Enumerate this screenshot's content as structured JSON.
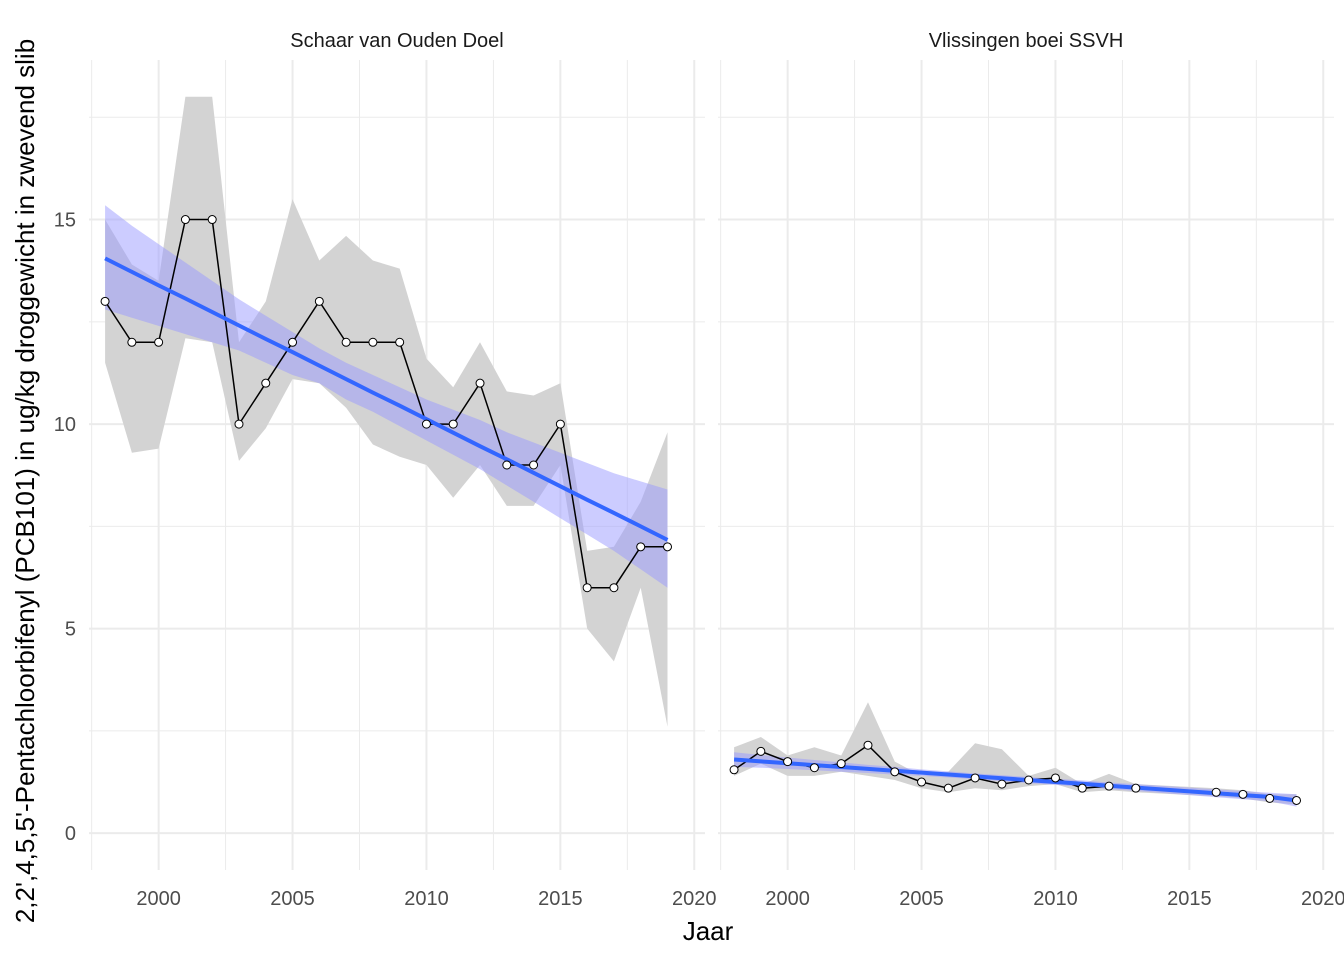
{
  "chart_data": {
    "type": "line",
    "xlabel": "Jaar",
    "ylabel": "2,2',4,5,5'-Pentachloorbifenyl (PCB101) in ug/kg droggewicht in zwevend slib",
    "xlim": [
      1997.4,
      2020.4
    ],
    "ylim": [
      -0.9,
      18.9
    ],
    "x_ticks": [
      2000,
      2005,
      2010,
      2015,
      2020
    ],
    "y_ticks": [
      0,
      5,
      10,
      15
    ],
    "grid": true,
    "colors": {
      "observed_line": "#000000",
      "point_fill": "#ffffff",
      "range_band": "#d3d3d3",
      "trend_line": "#3366ff",
      "trend_band": "#9999ff",
      "grid": "#ebebeb"
    },
    "panels": [
      {
        "title": "Schaar van Ouden Doel",
        "x": [
          1998,
          1999,
          2000,
          2001,
          2002,
          2003,
          2004,
          2005,
          2006,
          2007,
          2008,
          2009,
          2010,
          2011,
          2012,
          2013,
          2014,
          2015,
          2016,
          2017,
          2018,
          2019
        ],
        "values": [
          13,
          12,
          12,
          15,
          15,
          10,
          11,
          12,
          13,
          12,
          12,
          12,
          10,
          10,
          11,
          9,
          9,
          10,
          6,
          6,
          7,
          7
        ],
        "range_low": [
          11.5,
          9.3,
          9.4,
          12.1,
          12.0,
          9.1,
          9.9,
          11.1,
          11.0,
          10.4,
          9.5,
          9.2,
          9.0,
          8.2,
          9.0,
          8.0,
          8.0,
          9.0,
          5.0,
          4.2,
          6.0,
          2.6
        ],
        "range_high": [
          15.0,
          13.9,
          13.5,
          18.0,
          18.0,
          12.0,
          13.0,
          15.5,
          14.0,
          14.6,
          14.0,
          13.8,
          11.6,
          10.9,
          12.0,
          10.8,
          10.7,
          11.0,
          6.9,
          7.0,
          8.1,
          9.8
        ],
        "trend": [
          14.05,
          13.72,
          13.39,
          13.07,
          12.74,
          12.41,
          12.08,
          11.76,
          11.43,
          11.1,
          10.77,
          10.45,
          10.12,
          9.79,
          9.46,
          9.14,
          8.81,
          8.48,
          8.15,
          7.83,
          7.5,
          7.17
        ],
        "trend_low": [
          12.8,
          12.6,
          12.4,
          12.2,
          12.0,
          11.8,
          11.5,
          11.2,
          11.0,
          10.6,
          10.3,
          9.95,
          9.6,
          9.25,
          8.9,
          8.5,
          8.1,
          7.7,
          7.3,
          6.9,
          6.45,
          6.0
        ],
        "trend_high": [
          15.35,
          14.85,
          14.4,
          13.95,
          13.5,
          13.05,
          12.65,
          12.25,
          11.85,
          11.5,
          11.2,
          10.9,
          10.6,
          10.35,
          10.1,
          9.8,
          9.55,
          9.3,
          9.05,
          8.8,
          8.6,
          8.4
        ]
      },
      {
        "title": "Vlissingen boei SSVH",
        "x": [
          1998,
          1999,
          2000,
          2001,
          2002,
          2003,
          2004,
          2005,
          2006,
          2007,
          2008,
          2009,
          2010,
          2011,
          2012,
          2013,
          2016,
          2017,
          2018,
          2019
        ],
        "values": [
          1.55,
          2.0,
          1.75,
          1.6,
          1.7,
          2.15,
          1.5,
          1.25,
          1.1,
          1.35,
          1.2,
          1.3,
          1.35,
          1.1,
          1.15,
          1.1,
          1.0,
          0.95,
          0.85,
          0.8
        ],
        "range_low": [
          1.4,
          1.7,
          1.4,
          1.4,
          1.5,
          1.4,
          1.3,
          1.1,
          1.0,
          1.1,
          1.05,
          1.15,
          1.2,
          1.0,
          1.05,
          1.0,
          0.9,
          0.85,
          0.75,
          0.7
        ],
        "range_high": [
          2.1,
          2.35,
          1.9,
          2.1,
          1.9,
          3.2,
          1.75,
          1.4,
          1.5,
          2.2,
          2.05,
          1.4,
          1.6,
          1.2,
          1.45,
          1.2,
          1.1,
          1.05,
          0.95,
          0.95
        ],
        "trend": [
          1.8,
          1.754,
          1.709,
          1.663,
          1.617,
          1.571,
          1.526,
          1.48,
          1.434,
          1.389,
          1.343,
          1.297,
          1.251,
          1.206,
          1.16,
          1.114,
          0.977,
          0.931,
          0.886,
          0.8
        ],
        "trend_low": [
          1.62,
          1.6,
          1.57,
          1.54,
          1.5,
          1.47,
          1.43,
          1.4,
          1.36,
          1.32,
          1.27,
          1.22,
          1.18,
          1.13,
          1.08,
          1.03,
          0.88,
          0.83,
          0.78,
          0.65
        ],
        "trend_high": [
          1.98,
          1.91,
          1.85,
          1.79,
          1.73,
          1.67,
          1.62,
          1.56,
          1.51,
          1.46,
          1.42,
          1.37,
          1.33,
          1.29,
          1.24,
          1.2,
          1.07,
          1.03,
          0.99,
          0.95
        ]
      }
    ]
  }
}
